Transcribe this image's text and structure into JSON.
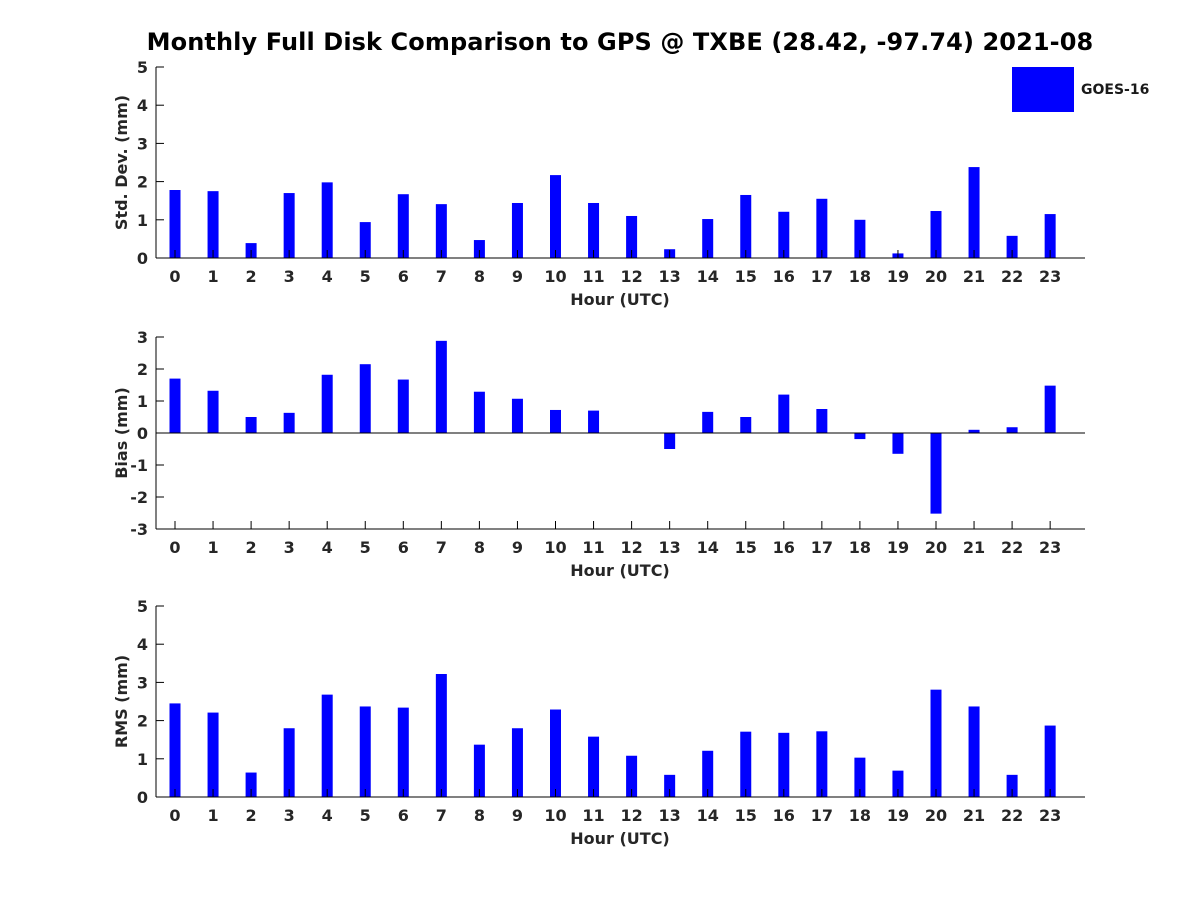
{
  "figure": {
    "title": "Monthly Full Disk Comparison to GPS @ TXBE (28.42, -97.74) 2021-08",
    "legend": {
      "label": "GOES-16",
      "color": "#0000ff"
    }
  },
  "chart_data": [
    {
      "type": "bar",
      "ylabel": "Std. Dev. (mm)",
      "xlabel": "Hour (UTC)",
      "categories": [
        "0",
        "1",
        "2",
        "3",
        "4",
        "5",
        "6",
        "7",
        "8",
        "9",
        "10",
        "11",
        "12",
        "13",
        "14",
        "15",
        "16",
        "17",
        "18",
        "19",
        "20",
        "21",
        "22",
        "23"
      ],
      "values": [
        1.78,
        1.75,
        0.39,
        1.7,
        1.98,
        0.94,
        1.67,
        1.41,
        0.47,
        1.44,
        2.17,
        1.44,
        1.1,
        0.23,
        1.02,
        1.65,
        1.21,
        1.55,
        1.0,
        0.12,
        1.23,
        2.38,
        0.58,
        1.15
      ],
      "ylim": [
        0,
        5
      ],
      "yticks": [
        0,
        1,
        2,
        3,
        4,
        5
      ],
      "color": "#0000ff",
      "series_name": "GOES-16",
      "legend": "top-right"
    },
    {
      "type": "bar",
      "ylabel": "Bias (mm)",
      "xlabel": "Hour (UTC)",
      "categories": [
        "0",
        "1",
        "2",
        "3",
        "4",
        "5",
        "6",
        "7",
        "8",
        "9",
        "10",
        "11",
        "12",
        "13",
        "14",
        "15",
        "16",
        "17",
        "18",
        "19",
        "20",
        "21",
        "22",
        "23"
      ],
      "values": [
        1.7,
        1.32,
        0.5,
        0.63,
        1.82,
        2.15,
        1.67,
        2.88,
        1.29,
        1.07,
        0.72,
        0.7,
        0.0,
        -0.5,
        0.66,
        0.5,
        1.2,
        0.75,
        -0.19,
        -0.65,
        -2.52,
        0.1,
        0.18,
        1.48
      ],
      "ylim": [
        -3,
        3
      ],
      "yticks": [
        -3,
        -2,
        -1,
        0,
        1,
        2,
        3
      ],
      "zero_line": true,
      "color": "#0000ff"
    },
    {
      "type": "bar",
      "ylabel": "RMS (mm)",
      "xlabel": "Hour (UTC)",
      "categories": [
        "0",
        "1",
        "2",
        "3",
        "4",
        "5",
        "6",
        "7",
        "8",
        "9",
        "10",
        "11",
        "12",
        "13",
        "14",
        "15",
        "16",
        "17",
        "18",
        "19",
        "20",
        "21",
        "22",
        "23"
      ],
      "values": [
        2.45,
        2.21,
        0.64,
        1.8,
        2.68,
        2.37,
        2.34,
        3.22,
        1.37,
        1.8,
        2.29,
        1.58,
        1.08,
        0.58,
        1.21,
        1.71,
        1.68,
        1.72,
        1.03,
        0.69,
        2.81,
        2.37,
        0.58,
        1.87
      ],
      "ylim": [
        0,
        5
      ],
      "yticks": [
        0,
        1,
        2,
        3,
        4,
        5
      ],
      "color": "#0000ff"
    }
  ]
}
